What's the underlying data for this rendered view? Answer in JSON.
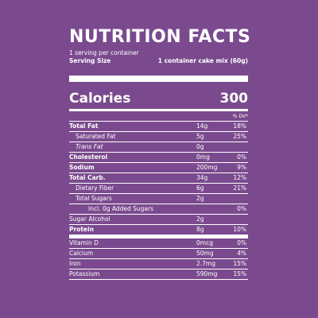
{
  "header": {
    "title": "NUTRITION FACTS",
    "servings": "1 serving per container",
    "serving_size_label": "Serving Size",
    "serving_size": "1 container cake mix (60g)"
  },
  "calories": {
    "label": "Calories",
    "value": 300
  },
  "dv_header": "% DV*",
  "nutrients": [
    {
      "name": "Total Fat",
      "amount": "14g",
      "dv": "18%"
    },
    {
      "name": "Saturated Fat",
      "amount": "5g",
      "dv": "25%"
    },
    {
      "name": "Trans Fat",
      "amount": "0g"
    },
    {
      "name": "Cholesterol",
      "amount": "0mg",
      "dv": "0%"
    },
    {
      "name": "Sodium",
      "amount": "200mg",
      "dv": "9%"
    },
    {
      "name": "Total Carb.",
      "amount": "34g",
      "dv": "12%"
    },
    {
      "name": "Dietary Fiber",
      "amount": "6g",
      "dv": "21%"
    },
    {
      "name": "Total Sugars",
      "amount": "2g"
    },
    {
      "name": "Incl. 0g Added Sugars",
      "dv": "0%"
    },
    {
      "name": "Sugar Alcohol",
      "amount": "2g"
    },
    {
      "name": "Protein",
      "amount": "8g",
      "dv": "10%"
    }
  ],
  "vitamins": [
    {
      "name": "Vitamin D",
      "amount": "0mcg",
      "dv": "0%"
    },
    {
      "name": "Calcium",
      "amount": "50mg",
      "dv": "4%"
    },
    {
      "name": "Iron",
      "amount": "2.7mg",
      "dv": "15%"
    },
    {
      "name": "Potassium",
      "amount": "590mg",
      "dv": "15%"
    }
  ]
}
